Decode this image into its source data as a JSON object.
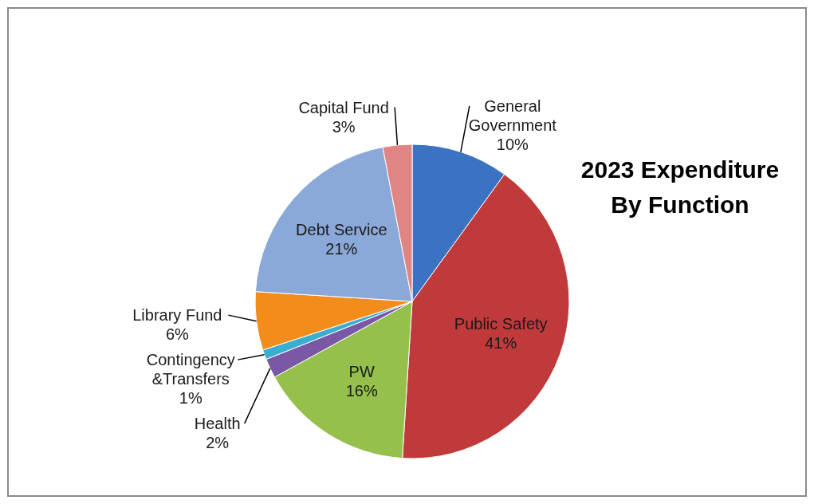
{
  "chart_data": {
    "type": "pie",
    "title": "2023 Expenditure By Function",
    "categories": [
      "General Government",
      "Public Safety",
      "PW",
      "Health",
      "Contingency &Transfers",
      "Library Fund",
      "Debt Service",
      "Capital Fund"
    ],
    "values": [
      10,
      41,
      16,
      2,
      1,
      6,
      21,
      3
    ],
    "value_labels": [
      "10%",
      "41%",
      "16%",
      "2%",
      "1%",
      "6%",
      "21%",
      "3%"
    ],
    "colors": [
      "#3b73c2",
      "#c0393b",
      "#95c04b",
      "#7a58a6",
      "#3aaed0",
      "#f28d1c",
      "#8aa8d8",
      "#e08584"
    ]
  }
}
